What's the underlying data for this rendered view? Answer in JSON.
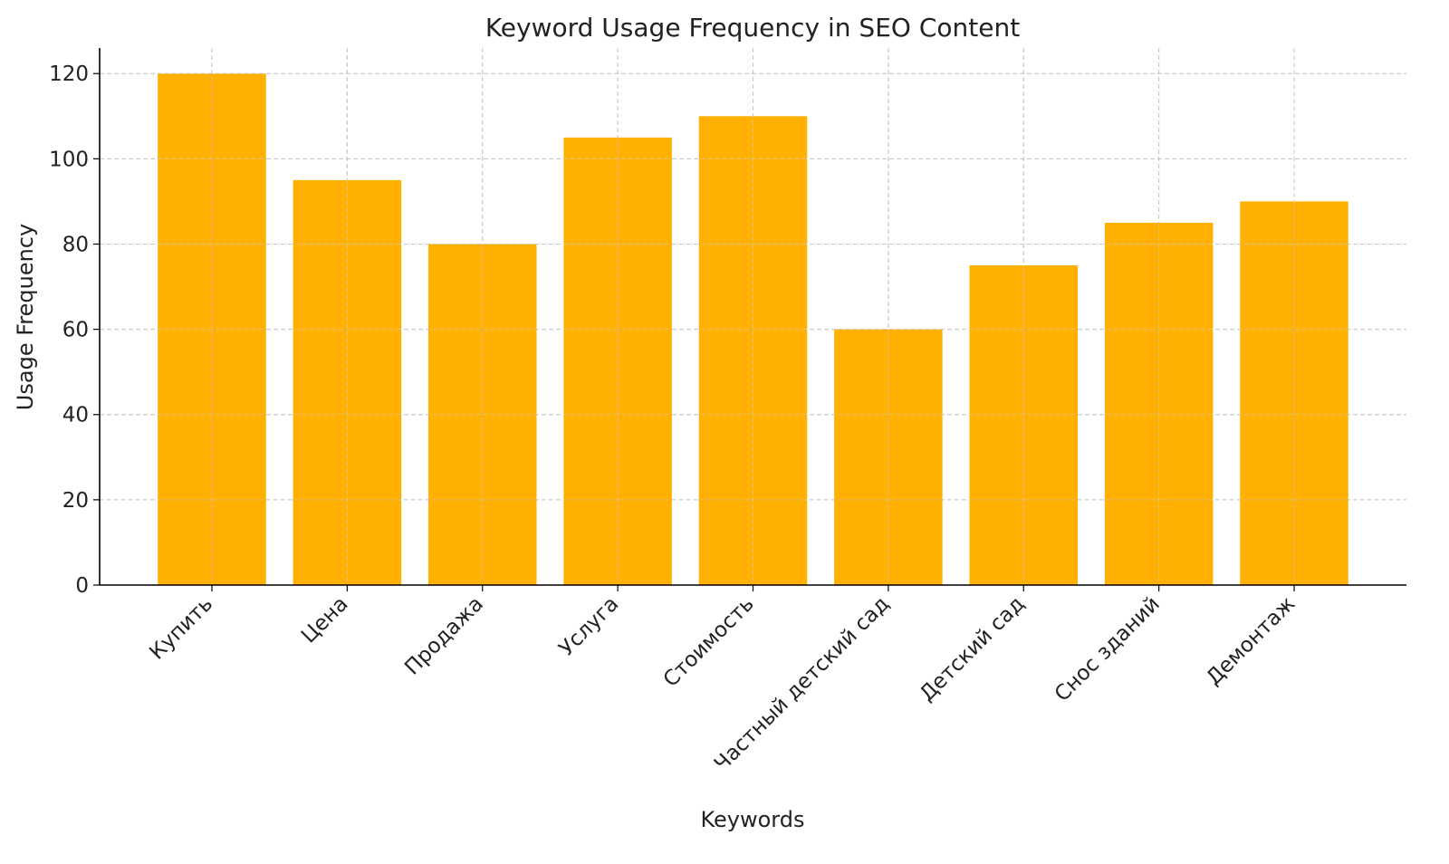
{
  "chart_data": {
    "type": "bar",
    "title": "Keyword Usage Frequency in SEO Content",
    "xlabel": "Keywords",
    "ylabel": "Usage Frequency",
    "categories": [
      "Купить",
      "Цена",
      "Продажа",
      "Услуга",
      "Стоимость",
      "Частный детский сад",
      "Детский сад",
      "Снос зданий",
      "Демонтаж"
    ],
    "values": [
      120,
      95,
      80,
      105,
      110,
      60,
      75,
      85,
      90
    ],
    "ylim": [
      0,
      126
    ],
    "yticks": [
      0,
      20,
      40,
      60,
      80,
      100,
      120
    ],
    "grid": true,
    "bar_color": "#FFB000",
    "tick_label_rotation": 45
  }
}
